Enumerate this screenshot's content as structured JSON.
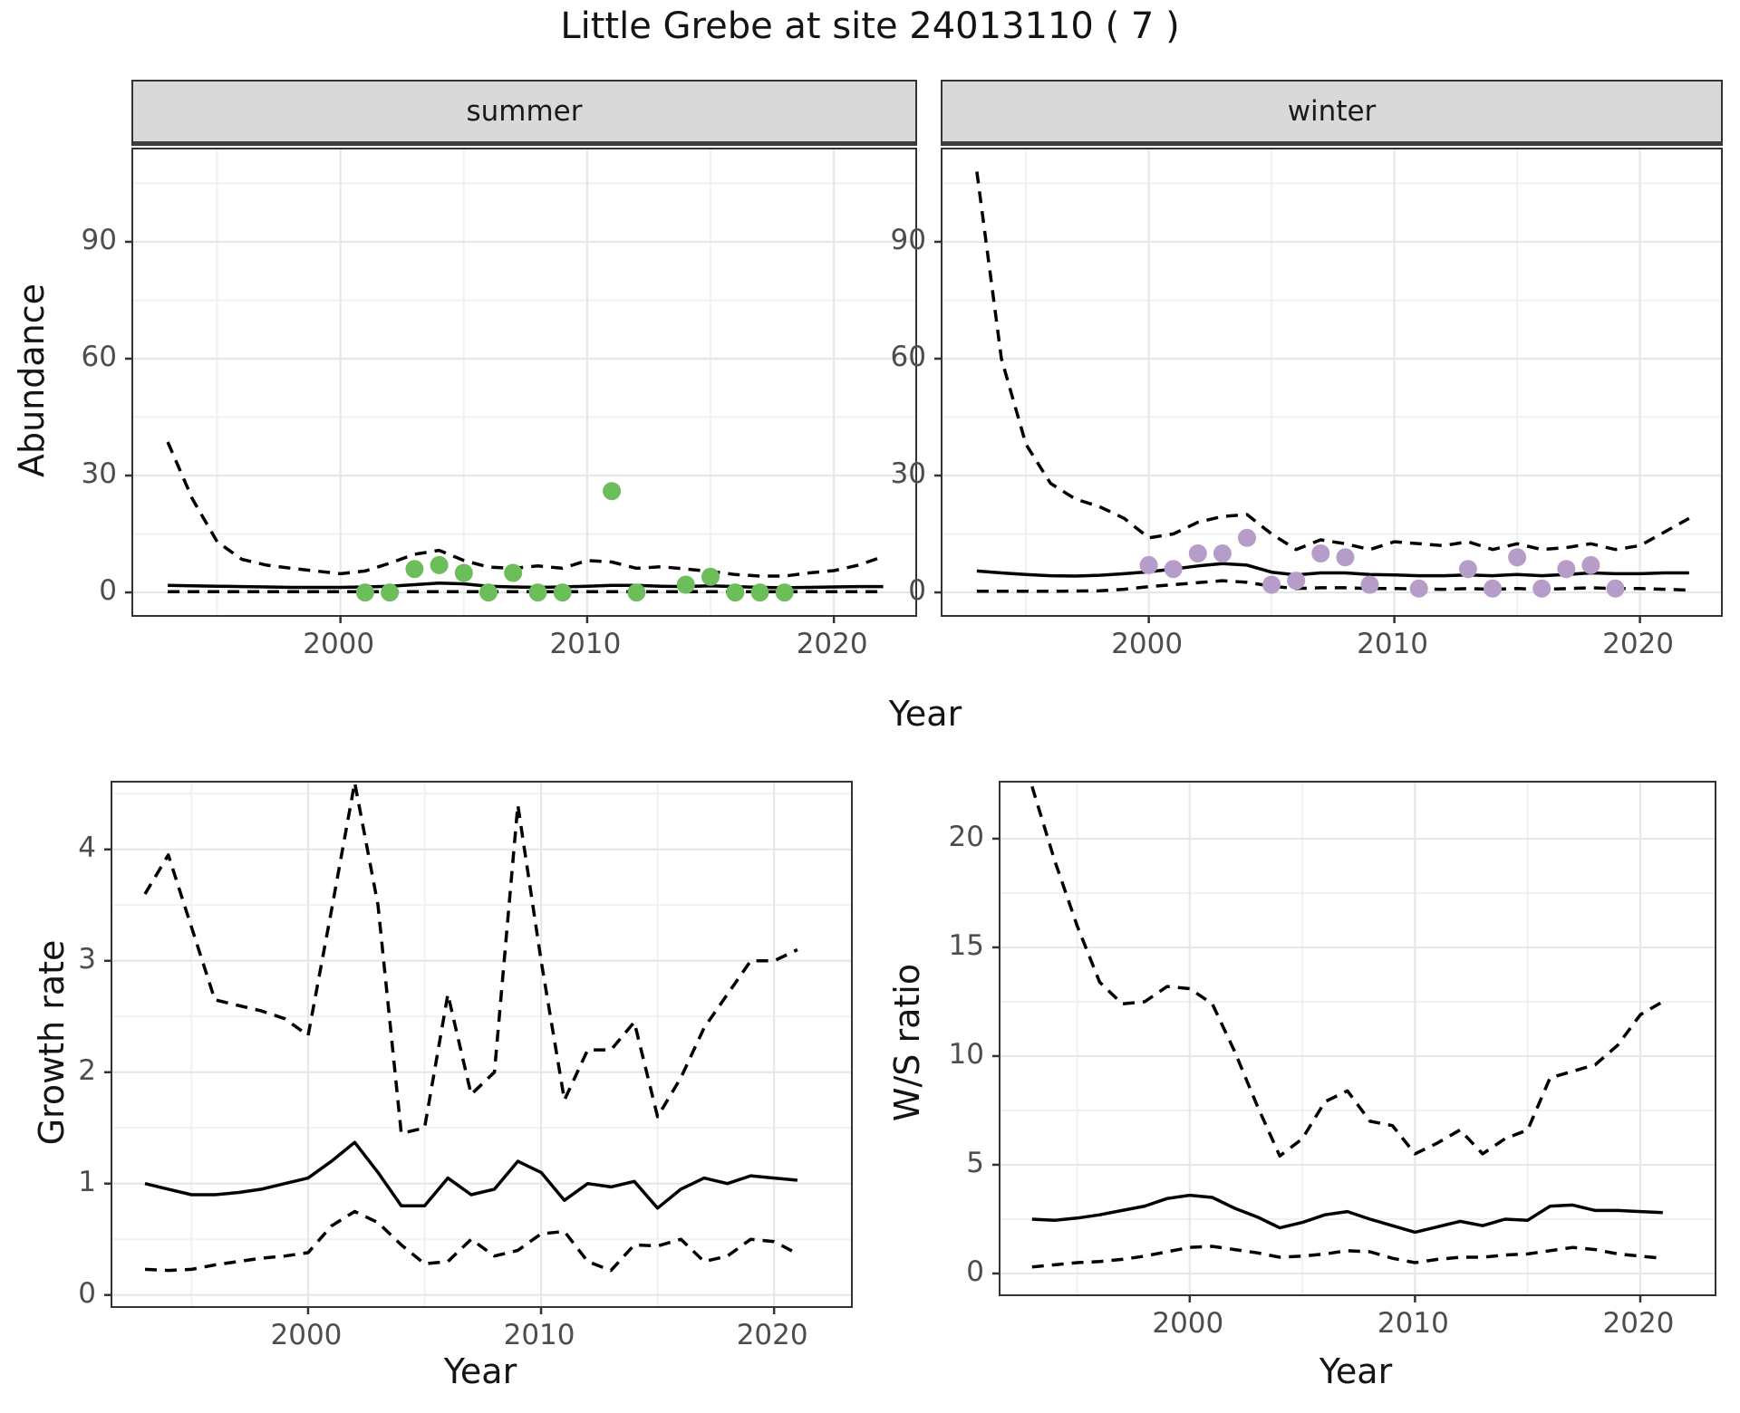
{
  "title": "Little Grebe at site 24013110 ( 7 )",
  "axis_titles": {
    "y_abundance": "Abundance",
    "y_growth": "Growth rate",
    "y_ws": "W/S ratio",
    "x": "Year"
  },
  "colors": {
    "summer_point": "#6cbe5a",
    "winter_point": "#b59cc9",
    "line": "#000000",
    "grid_major": "#e7e7e7",
    "grid_minor": "#f1f1f1",
    "strip_bg": "#d9d9d9",
    "panel_border": "#333333",
    "axis_text": "#4d4d4d",
    "tick_mark": "#333333"
  },
  "chart_data": [
    {
      "id": "abundance-summer",
      "type": "line",
      "facet_label": "summer",
      "ylabel": "Abundance",
      "xlabel": "Year",
      "xlim": [
        1991.6,
        2023.3
      ],
      "ylim": [
        -5.8,
        113.7
      ],
      "x_ticks": [
        2000,
        2010,
        2020
      ],
      "x_minor": [
        1995,
        2005,
        2015
      ],
      "y_ticks": [
        0,
        30,
        60,
        90
      ],
      "y_minor": [
        15,
        45,
        75,
        105
      ],
      "grid": true,
      "legend": "none",
      "years": [
        1993,
        1994,
        1995,
        1996,
        1997,
        1998,
        1999,
        2000,
        2001,
        2002,
        2003,
        2004,
        2005,
        2006,
        2007,
        2008,
        2009,
        2010,
        2011,
        2012,
        2013,
        2014,
        2015,
        2016,
        2017,
        2018,
        2019,
        2020,
        2021,
        2022
      ],
      "series": [
        {
          "name": "mean",
          "style": "solid",
          "values": [
            1.8,
            1.7,
            1.6,
            1.5,
            1.4,
            1.3,
            1.3,
            1.3,
            1.4,
            1.6,
            2.0,
            2.4,
            2.2,
            1.6,
            1.4,
            1.3,
            1.4,
            1.6,
            1.8,
            1.8,
            1.6,
            1.5,
            1.7,
            1.5,
            1.3,
            1.2,
            1.3,
            1.4,
            1.5,
            1.5
          ]
        },
        {
          "name": "upper_ci",
          "style": "dashed",
          "values": [
            38.6,
            24,
            13,
            8.5,
            7,
            6.2,
            5.5,
            4.8,
            5.5,
            7.5,
            9.8,
            10.8,
            8.2,
            6.5,
            6.2,
            6.8,
            6.2,
            8.2,
            7.8,
            6.2,
            6.6,
            6.0,
            5.4,
            4.6,
            4.2,
            4.2,
            5.0,
            5.6,
            7.0,
            9.2
          ]
        },
        {
          "name": "lower_ci",
          "style": "dashed",
          "values": [
            0.2,
            0.2,
            0.2,
            0.2,
            0.2,
            0.2,
            0.2,
            0.2,
            0.2,
            0.2,
            0.2,
            0.2,
            0.2,
            0.2,
            0.2,
            0.2,
            0.2,
            0.2,
            0.2,
            0.2,
            0.2,
            0.2,
            0.2,
            0.2,
            0.2,
            0.2,
            0.2,
            0.2,
            0.2,
            0.2
          ]
        }
      ],
      "points": {
        "color_key": "summer_point",
        "years": [
          2001,
          2002,
          2003,
          2004,
          2005,
          2006,
          2007,
          2008,
          2009,
          2011,
          2012,
          2014,
          2015,
          2016,
          2017,
          2018
        ],
        "values": [
          0,
          0,
          6,
          7,
          5,
          0,
          5,
          0,
          0,
          26,
          0,
          2,
          4,
          0,
          0,
          0
        ]
      }
    },
    {
      "id": "abundance-winter",
      "type": "line",
      "facet_label": "winter",
      "ylabel": "Abundance",
      "xlabel": "Year",
      "xlim": [
        1991.6,
        2023.3
      ],
      "ylim": [
        -5.8,
        113.7
      ],
      "x_ticks": [
        2000,
        2010,
        2020
      ],
      "x_minor": [
        1995,
        2005,
        2015
      ],
      "y_ticks": [
        0,
        30,
        60,
        90
      ],
      "y_minor": [
        15,
        45,
        75,
        105
      ],
      "grid": true,
      "legend": "none",
      "years": [
        1993,
        1994,
        1995,
        1996,
        1997,
        1998,
        1999,
        2000,
        2001,
        2002,
        2003,
        2004,
        2005,
        2006,
        2007,
        2008,
        2009,
        2010,
        2011,
        2012,
        2013,
        2014,
        2015,
        2016,
        2017,
        2018,
        2019,
        2020,
        2021,
        2022
      ],
      "series": [
        {
          "name": "mean",
          "style": "solid",
          "values": [
            5.5,
            5.0,
            4.6,
            4.3,
            4.2,
            4.4,
            4.8,
            5.3,
            6.0,
            6.8,
            7.4,
            7.0,
            5.2,
            4.5,
            5.0,
            5.0,
            4.6,
            4.5,
            4.3,
            4.3,
            4.5,
            4.3,
            4.6,
            4.3,
            4.6,
            5.0,
            4.8,
            4.8,
            5.0,
            5.0
          ]
        },
        {
          "name": "upper_ci",
          "style": "dashed",
          "values": [
            108,
            60,
            38,
            28,
            24,
            22,
            19,
            14,
            15,
            18,
            19.5,
            20,
            15,
            11,
            13.5,
            12.5,
            11,
            13,
            12.5,
            12,
            13,
            11,
            12.5,
            11,
            11.5,
            12.5,
            11,
            12,
            15.5,
            19
          ]
        },
        {
          "name": "lower_ci",
          "style": "dashed",
          "values": [
            0.3,
            0.3,
            0.3,
            0.3,
            0.35,
            0.4,
            0.8,
            1.5,
            2.0,
            2.5,
            3.0,
            2.6,
            1.6,
            1.0,
            1.2,
            1.2,
            1.0,
            1.0,
            0.9,
            0.8,
            1.0,
            0.8,
            1.0,
            0.8,
            1.0,
            1.2,
            1.0,
            1.0,
            0.8,
            0.6
          ]
        }
      ],
      "points": {
        "color_key": "winter_point",
        "years": [
          2000,
          2001,
          2002,
          2003,
          2004,
          2005,
          2006,
          2007,
          2008,
          2009,
          2011,
          2013,
          2014,
          2015,
          2016,
          2017,
          2018,
          2019
        ],
        "values": [
          7,
          6,
          10,
          10,
          14,
          2,
          3,
          10,
          9,
          2,
          1,
          6,
          1,
          9,
          1,
          6,
          7,
          1
        ]
      }
    },
    {
      "id": "growth-rate",
      "type": "line",
      "facet_label": "",
      "ylabel": "Growth rate",
      "xlabel": "Year",
      "xlim": [
        1991.6,
        2023.3
      ],
      "ylim": [
        -0.1,
        4.6
      ],
      "x_ticks": [
        2000,
        2010,
        2020
      ],
      "x_minor": [
        1995,
        2005,
        2015
      ],
      "y_ticks": [
        0,
        1,
        2,
        3,
        4
      ],
      "y_minor": [
        0.5,
        1.5,
        2.5,
        3.5,
        4.5
      ],
      "grid": true,
      "legend": "none",
      "years": [
        1993,
        1994,
        1995,
        1996,
        1997,
        1998,
        1999,
        2000,
        2001,
        2002,
        2003,
        2004,
        2005,
        2006,
        2007,
        2008,
        2009,
        2010,
        2011,
        2012,
        2013,
        2014,
        2015,
        2016,
        2017,
        2018,
        2019,
        2020,
        2021
      ],
      "series": [
        {
          "name": "mean",
          "style": "solid",
          "values": [
            1.0,
            0.95,
            0.9,
            0.9,
            0.92,
            0.95,
            1.0,
            1.05,
            1.2,
            1.37,
            1.1,
            0.8,
            0.8,
            1.05,
            0.9,
            0.95,
            1.2,
            1.1,
            0.85,
            1.0,
            0.97,
            1.02,
            0.78,
            0.95,
            1.05,
            1.0,
            1.07,
            1.05,
            1.03
          ]
        },
        {
          "name": "upper_ci",
          "style": "dashed",
          "values": [
            3.6,
            3.95,
            3.3,
            2.65,
            2.6,
            2.55,
            2.48,
            2.33,
            3.45,
            4.6,
            3.5,
            1.45,
            1.5,
            2.7,
            1.8,
            2.0,
            4.4,
            3.0,
            1.75,
            2.2,
            2.2,
            2.45,
            1.6,
            1.95,
            2.4,
            2.7,
            3.0,
            3.0,
            3.1
          ]
        },
        {
          "name": "lower_ci",
          "style": "dashed",
          "values": [
            0.23,
            0.22,
            0.23,
            0.27,
            0.3,
            0.33,
            0.35,
            0.38,
            0.62,
            0.75,
            0.65,
            0.45,
            0.28,
            0.3,
            0.5,
            0.35,
            0.4,
            0.55,
            0.57,
            0.3,
            0.22,
            0.45,
            0.44,
            0.5,
            0.3,
            0.35,
            0.5,
            0.48,
            0.37
          ]
        }
      ]
    },
    {
      "id": "ws-ratio",
      "type": "line",
      "facet_label": "",
      "ylabel": "W/S ratio",
      "xlabel": "Year",
      "xlim": [
        1991.6,
        2023.3
      ],
      "ylim": [
        -0.96,
        22.58
      ],
      "x_ticks": [
        2000,
        2010,
        2020
      ],
      "x_minor": [
        1995,
        2005,
        2015
      ],
      "y_ticks": [
        0,
        5,
        10,
        15,
        20
      ],
      "y_minor": [
        2.5,
        7.5,
        12.5,
        17.5
      ],
      "grid": true,
      "legend": "none",
      "years": [
        1993,
        1994,
        1995,
        1996,
        1997,
        1998,
        1999,
        2000,
        2001,
        2002,
        2003,
        2004,
        2005,
        2006,
        2007,
        2008,
        2009,
        2010,
        2011,
        2012,
        2013,
        2014,
        2015,
        2016,
        2017,
        2018,
        2019,
        2020,
        2021
      ],
      "series": [
        {
          "name": "mean",
          "style": "solid",
          "values": [
            2.5,
            2.45,
            2.55,
            2.7,
            2.9,
            3.1,
            3.45,
            3.6,
            3.5,
            3.0,
            2.6,
            2.1,
            2.35,
            2.7,
            2.85,
            2.5,
            2.2,
            1.9,
            2.15,
            2.4,
            2.2,
            2.5,
            2.45,
            3.1,
            3.15,
            2.9,
            2.9,
            2.85,
            2.8
          ]
        },
        {
          "name": "upper_ci",
          "style": "dashed",
          "values": [
            22.4,
            19.0,
            16.0,
            13.4,
            12.4,
            12.5,
            13.2,
            13.1,
            12.4,
            10.2,
            7.7,
            5.4,
            6.2,
            7.9,
            8.4,
            7.0,
            6.8,
            5.5,
            6.0,
            6.6,
            5.5,
            6.2,
            6.6,
            9.0,
            9.3,
            9.6,
            10.5,
            11.9,
            12.5
          ]
        },
        {
          "name": "lower_ci",
          "style": "dashed",
          "values": [
            0.3,
            0.4,
            0.5,
            0.55,
            0.65,
            0.8,
            1.0,
            1.2,
            1.25,
            1.1,
            0.95,
            0.75,
            0.8,
            0.9,
            1.05,
            1.0,
            0.7,
            0.5,
            0.65,
            0.75,
            0.75,
            0.85,
            0.9,
            1.05,
            1.2,
            1.1,
            0.9,
            0.8,
            0.7
          ]
        }
      ]
    }
  ]
}
